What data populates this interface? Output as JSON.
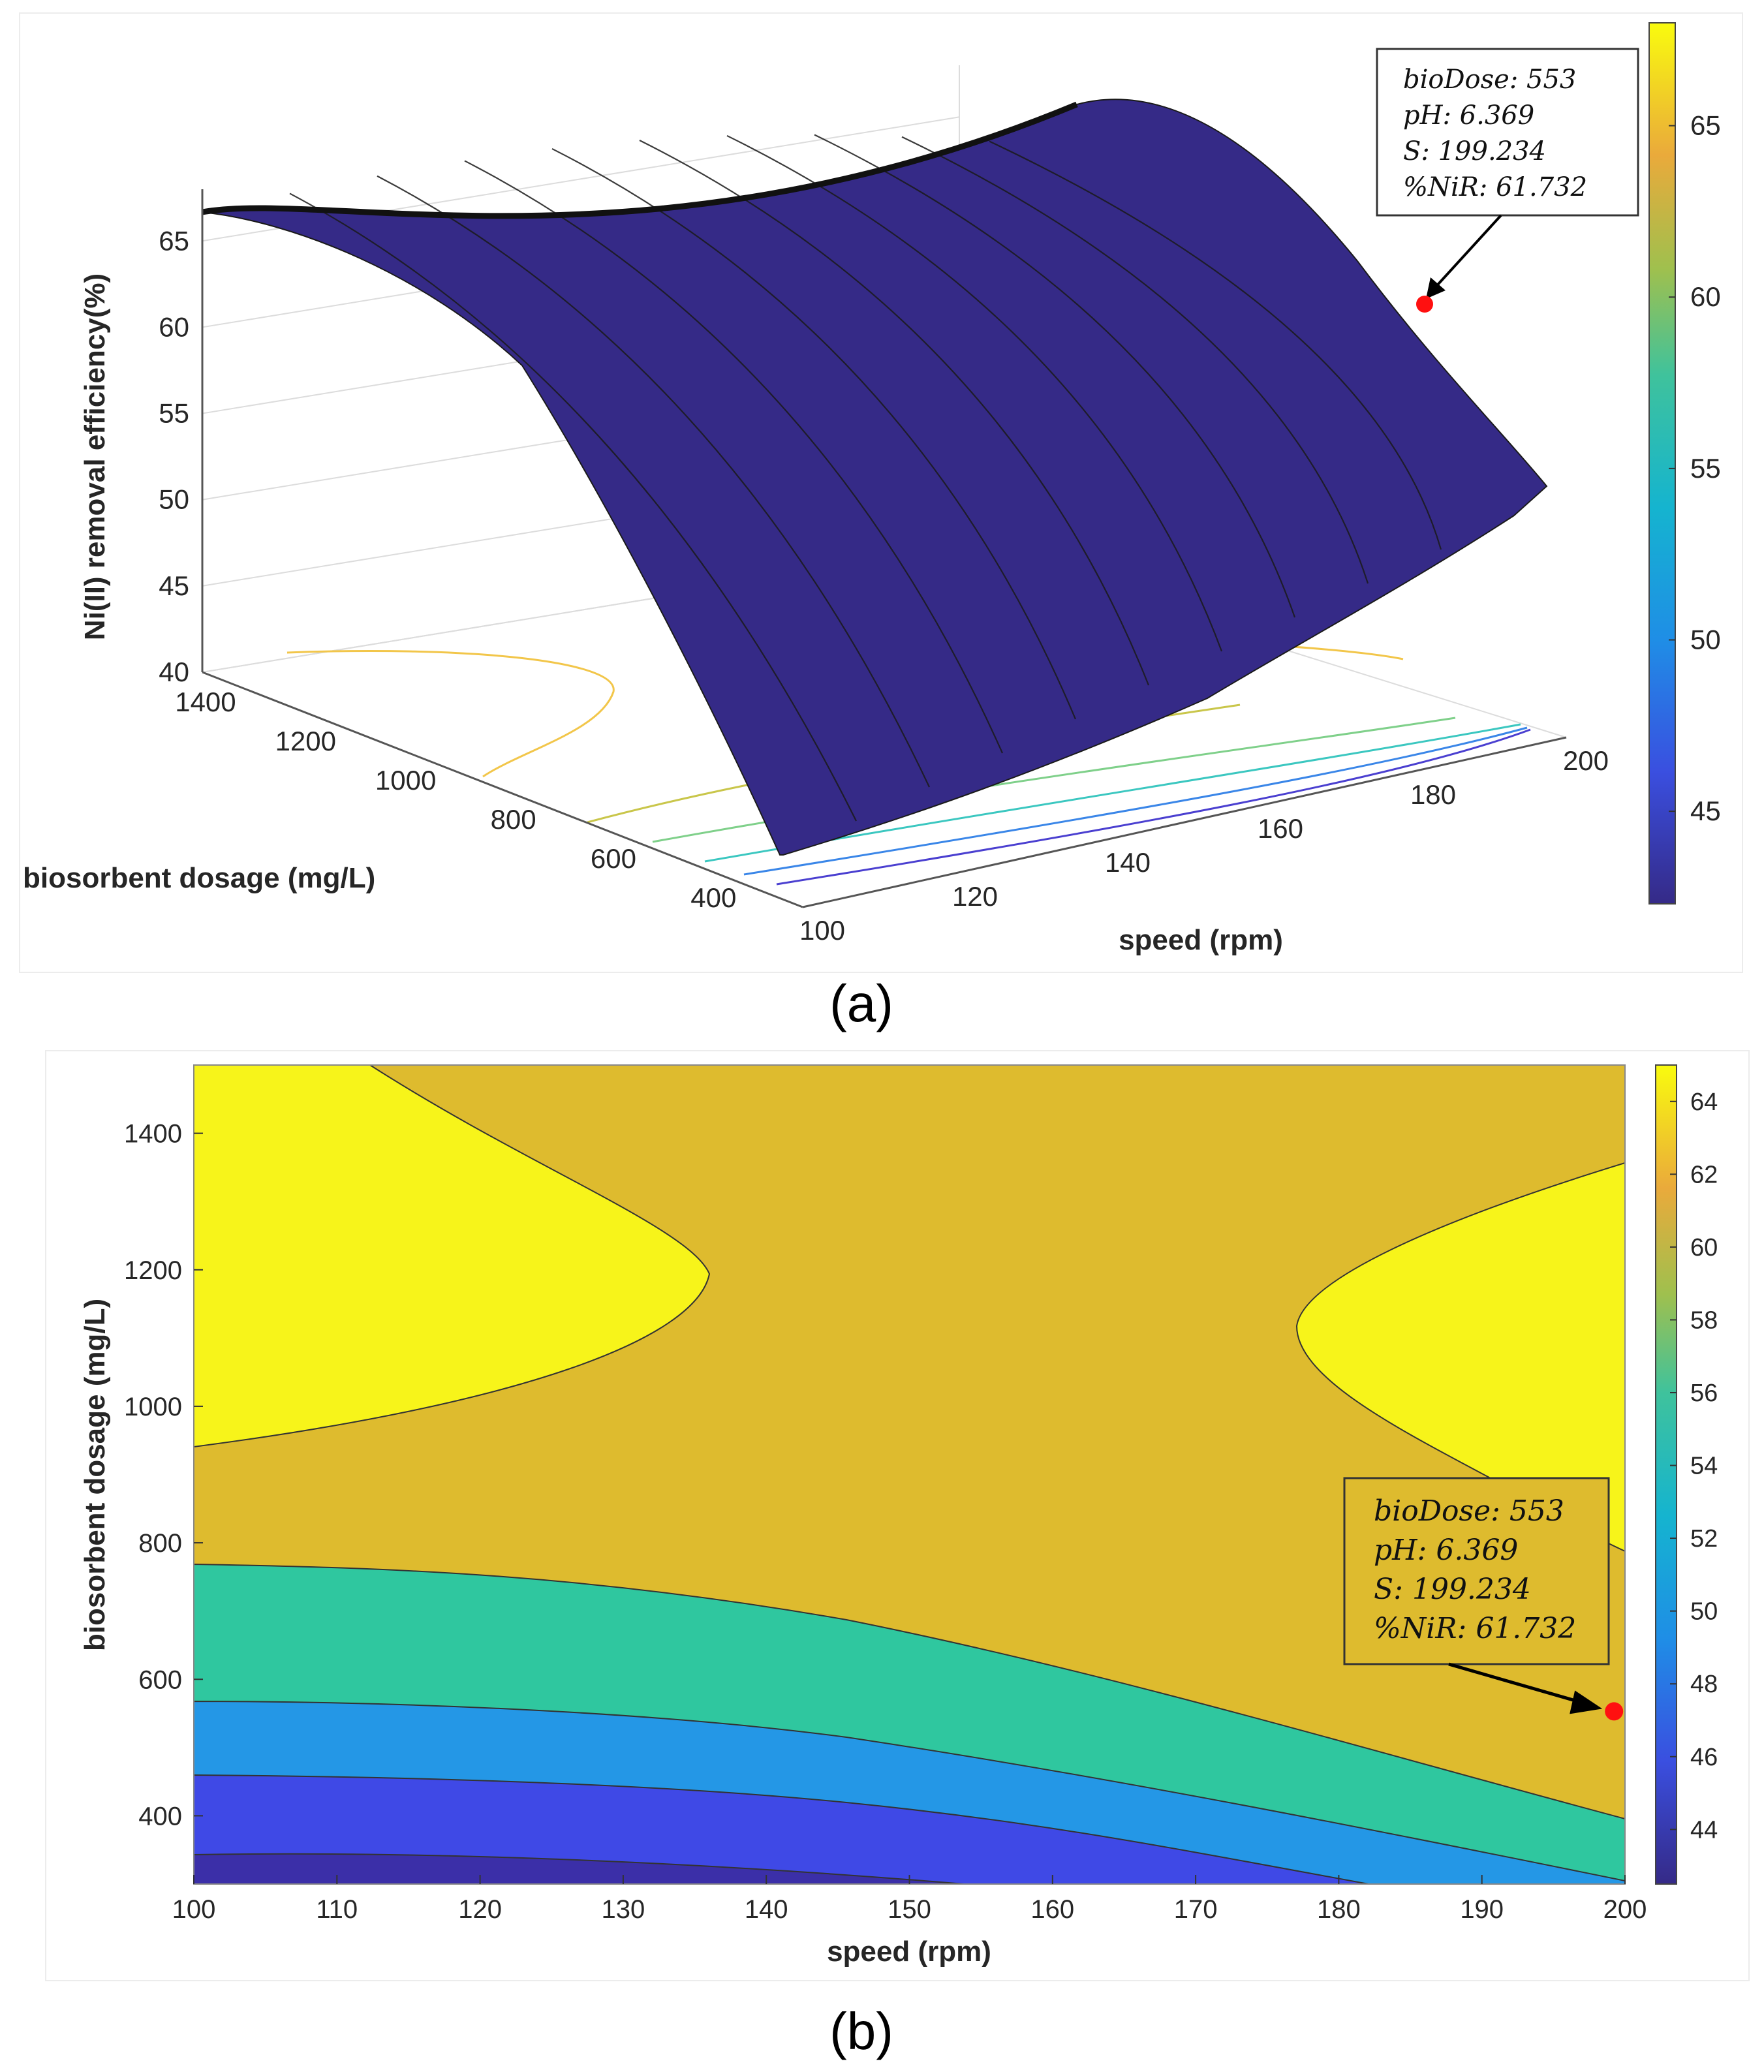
{
  "chart_data": [
    {
      "type": "surface3d",
      "panel_label": "(a)",
      "title": "",
      "xlabel": "speed (rpm)",
      "ylabel": "biosorbent dosage (mg/L)",
      "zlabel": "Ni(II) removal efficiency(%)",
      "x_ticks": [
        100,
        120,
        140,
        160,
        180,
        200
      ],
      "y_ticks": [
        400,
        600,
        800,
        1000,
        1200,
        1400
      ],
      "z_ticks": [
        40,
        45,
        50,
        55,
        60,
        65
      ],
      "xlim": [
        100,
        200
      ],
      "ylim": [
        300,
        1500
      ],
      "zlim": [
        40,
        68
      ],
      "colorbar": {
        "ticks": [
          45,
          50,
          55,
          60,
          65
        ],
        "range": [
          42.3,
          68
        ]
      },
      "surface_profile": [
        {
          "dosage": 300,
          "z_at_100": 43.0,
          "z_at_200": 56.0
        },
        {
          "dosage": 553,
          "z_at_100": 54.0,
          "z_at_200": 61.7
        },
        {
          "dosage": 800,
          "z_at_100": 61.5,
          "z_at_200": 65.0
        },
        {
          "dosage": 1000,
          "z_at_100": 64.5,
          "z_at_200": 66.5
        },
        {
          "dosage": 1200,
          "z_at_100": 66.0,
          "z_at_200": 67.5
        },
        {
          "dosage": 1500,
          "z_at_100": 66.5,
          "z_at_200": 66.0
        }
      ],
      "datatip": {
        "lines": [
          "bioDose: 553",
          "pH: 6.369",
          "S: 199.234",
          "%NiR: 61.732"
        ],
        "speed": 199.234,
        "dosage": 553,
        "value": 61.732
      }
    },
    {
      "type": "contour",
      "panel_label": "(b)",
      "title": "",
      "xlabel": "speed (rpm)",
      "ylabel": "biosorbent dosage (mg/L)",
      "x_ticks": [
        100,
        110,
        120,
        130,
        140,
        150,
        160,
        170,
        180,
        190,
        200
      ],
      "y_ticks": [
        400,
        600,
        800,
        1000,
        1200,
        1400
      ],
      "xlim": [
        100,
        200
      ],
      "ylim": [
        300,
        1500
      ],
      "colorbar": {
        "ticks": [
          44,
          46,
          48,
          50,
          52,
          54,
          56,
          58,
          60,
          62,
          64
        ],
        "range": [
          42.5,
          65
        ]
      },
      "levels": [
        {
          "range": "<45",
          "color": "#3b2fa8"
        },
        {
          "range": "45-50",
          "color": "#3f49e6"
        },
        {
          "range": "50-55",
          "color": "#2497e6"
        },
        {
          "range": "55-60",
          "color": "#2fc79f"
        },
        {
          "range": "60-65",
          "color": "#debb2e"
        },
        {
          "range": ">65",
          "color": "#f7f41a"
        }
      ],
      "datatip": {
        "lines": [
          "bioDose: 553",
          "pH: 6.369",
          "S: 199.234",
          "%NiR: 61.732"
        ],
        "speed": 199.234,
        "dosage": 553,
        "value": 61.732
      }
    }
  ]
}
